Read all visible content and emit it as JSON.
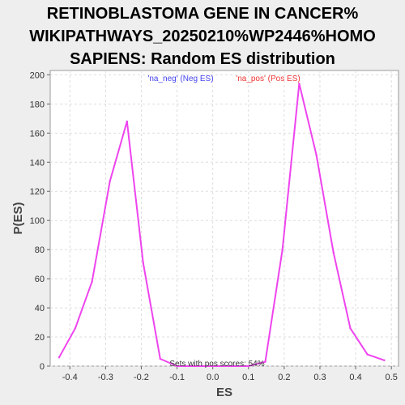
{
  "chart_data": {
    "type": "line",
    "title_lines": [
      "RETINOBLASTOMA GENE IN CANCER%",
      "WIKIPATHWAYS_20250210%WP2446%HOMO",
      "SAPIENS: Random ES distribution"
    ],
    "xlabel": "ES",
    "ylabel": "P(ES)",
    "xlim": [
      -0.455,
      0.52
    ],
    "ylim": [
      0,
      203
    ],
    "xticks": [
      -0.4,
      -0.3,
      -0.2,
      -0.1,
      0.0,
      0.1,
      0.2,
      0.3,
      0.4,
      0.5
    ],
    "xtick_labels": [
      "-0.4",
      "-0.3",
      "-0.2",
      "-0.1",
      "0.0",
      "0.1",
      "0.2",
      "0.3",
      "0.4",
      "0.5"
    ],
    "yticks": [
      0,
      20,
      40,
      60,
      80,
      100,
      120,
      140,
      160,
      180,
      200
    ],
    "ytick_labels": [
      "0",
      "20",
      "40",
      "60",
      "80",
      "100",
      "120",
      "140",
      "160",
      "180",
      "200"
    ],
    "grid": true,
    "series": [
      {
        "name": "Random ES distribution",
        "color": "#ee44ee",
        "x": [
          -0.43,
          -0.385,
          -0.338,
          -0.288,
          -0.24,
          -0.195,
          -0.147,
          -0.1,
          -0.05,
          0.0,
          0.05,
          0.1,
          0.147,
          0.195,
          0.242,
          0.29,
          0.338,
          0.385,
          0.433,
          0.48
        ],
        "y": [
          6,
          26,
          58,
          127,
          168,
          71,
          5,
          0,
          0,
          0,
          0,
          0,
          3,
          80,
          194,
          145,
          78,
          26,
          8,
          4
        ]
      }
    ],
    "legend": [
      {
        "label": "'na_neg' (Neg ES)",
        "color": "#4444ee"
      },
      {
        "label": "'na_pos' (Pos ES)",
        "color": "#ee3333"
      }
    ],
    "annotation": "Sets with pos scores: 54%"
  }
}
